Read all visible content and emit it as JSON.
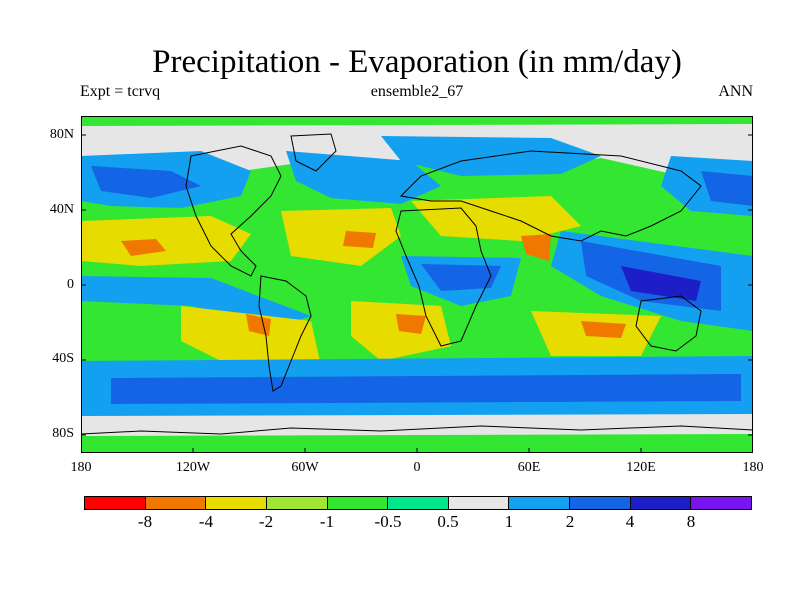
{
  "header": {
    "title": "Precipitation - Evaporation (in mm/day)",
    "left": "Expt = tcrvq",
    "center": "ensemble2_67",
    "right": "ANN"
  },
  "axes": {
    "lat_labels": [
      "80N",
      "40N",
      "0",
      "40S",
      "80S"
    ],
    "lon_labels": [
      "180",
      "120W",
      "60W",
      "0",
      "60E",
      "120E",
      "180"
    ]
  },
  "colorbar": {
    "colors": [
      "#ff0000",
      "#f07800",
      "#e6dc00",
      "#a0e632",
      "#32e632",
      "#00e68c",
      "#e6e6e6",
      "#14a0f0",
      "#1464e6",
      "#1e1ec8",
      "#7814f0"
    ],
    "labels": [
      "-8",
      "-4",
      "-2",
      "-1",
      "-0.5",
      "0.5",
      "1",
      "2",
      "4",
      "8"
    ]
  },
  "palette": {
    "dry_strong": "#f07800",
    "dry": "#e6dc00",
    "dry_light": "#a0e632",
    "neutral_green": "#32e632",
    "neutral_teal": "#00e68c",
    "neutral_grey": "#e6e6e6",
    "wet": "#14a0f0",
    "wet_strong": "#1464e6",
    "wet_max": "#1e1ec8"
  }
}
